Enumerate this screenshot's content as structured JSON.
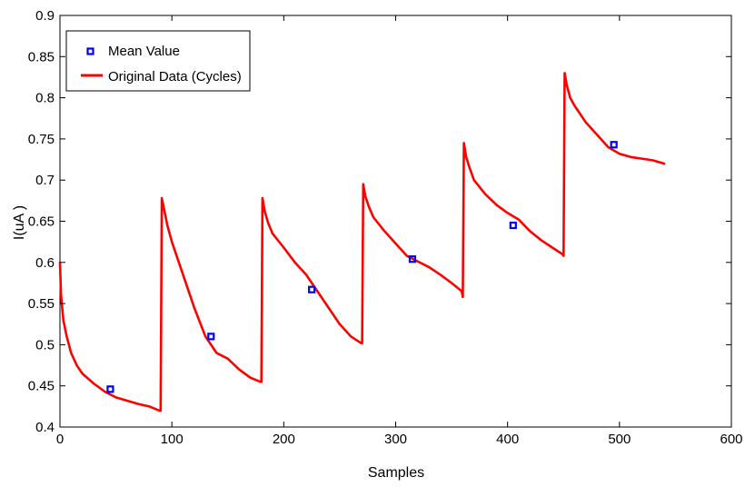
{
  "chart_data": {
    "type": "line",
    "title": "",
    "xlabel": "Samples",
    "ylabel": "I(uA )",
    "xlim": [
      0,
      600
    ],
    "ylim": [
      0.4,
      0.9
    ],
    "x_ticks": [
      "0",
      "100",
      "200",
      "300",
      "400",
      "500",
      "600"
    ],
    "y_ticks": [
      "0.4",
      "0.45",
      "0.5",
      "0.55",
      "0.6",
      "0.65",
      "0.7",
      "0.75",
      "0.8",
      "0.85",
      "0.9"
    ],
    "grid": false,
    "legend_position": "top-left",
    "colors": {
      "line": "#ff0000",
      "marker": "#0000ff",
      "axis": "#000000"
    },
    "series": [
      {
        "name": "Mean Value",
        "kind": "scatter",
        "marker": "square",
        "x": [
          45,
          135,
          225,
          315,
          405,
          495
        ],
        "y": [
          0.446,
          0.51,
          0.567,
          0.604,
          0.645,
          0.743
        ]
      },
      {
        "name": "Original Data (Cycles)",
        "kind": "line",
        "x": [
          0,
          1,
          3,
          6,
          10,
          15,
          20,
          30,
          40,
          50,
          60,
          70,
          80,
          89,
          90,
          91,
          93,
          96,
          100,
          110,
          120,
          130,
          140,
          150,
          160,
          170,
          179,
          180,
          181,
          183,
          186,
          190,
          200,
          210,
          220,
          230,
          240,
          250,
          260,
          269,
          270,
          271,
          273,
          276,
          280,
          290,
          300,
          310,
          320,
          330,
          340,
          350,
          359,
          360,
          361,
          363,
          366,
          370,
          380,
          390,
          400,
          410,
          420,
          430,
          440,
          449,
          450,
          451,
          453,
          456,
          460,
          470,
          480,
          490,
          500,
          510,
          520,
          530,
          540
        ],
        "y": [
          0.6,
          0.56,
          0.53,
          0.51,
          0.49,
          0.475,
          0.465,
          0.453,
          0.443,
          0.436,
          0.432,
          0.428,
          0.425,
          0.42,
          0.42,
          0.678,
          0.665,
          0.645,
          0.625,
          0.585,
          0.545,
          0.51,
          0.49,
          0.483,
          0.47,
          0.46,
          0.455,
          0.455,
          0.678,
          0.662,
          0.648,
          0.635,
          0.618,
          0.6,
          0.585,
          0.565,
          0.545,
          0.525,
          0.51,
          0.502,
          0.502,
          0.695,
          0.68,
          0.668,
          0.655,
          0.638,
          0.623,
          0.608,
          0.601,
          0.594,
          0.585,
          0.575,
          0.565,
          0.558,
          0.745,
          0.728,
          0.715,
          0.7,
          0.683,
          0.67,
          0.66,
          0.652,
          0.638,
          0.627,
          0.618,
          0.61,
          0.608,
          0.83,
          0.815,
          0.8,
          0.79,
          0.77,
          0.755,
          0.74,
          0.732,
          0.728,
          0.726,
          0.724,
          0.72
        ]
      }
    ]
  }
}
